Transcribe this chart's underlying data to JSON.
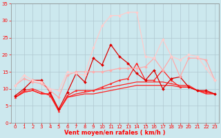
{
  "x": [
    0,
    1,
    2,
    3,
    4,
    5,
    6,
    7,
    8,
    9,
    10,
    11,
    12,
    13,
    14,
    15,
    16,
    17,
    18,
    19,
    20,
    21,
    22,
    23
  ],
  "series": [
    {
      "values": [
        7.5,
        9.0,
        9.5,
        8.5,
        8.5,
        3.5,
        7.5,
        8.0,
        8.5,
        8.5,
        9.0,
        9.5,
        10.0,
        10.5,
        11.0,
        11.0,
        11.0,
        11.0,
        11.0,
        10.5,
        10.5,
        9.5,
        8.5,
        8.5
      ],
      "color": "#ff2222",
      "lw": 0.9,
      "marker": null,
      "ms": 0
    },
    {
      "values": [
        7.5,
        9.0,
        9.5,
        8.5,
        8.5,
        3.5,
        7.5,
        8.5,
        9.0,
        9.5,
        10.0,
        10.5,
        11.0,
        11.5,
        12.0,
        12.0,
        12.0,
        12.0,
        11.5,
        11.0,
        11.0,
        9.5,
        9.0,
        8.5
      ],
      "color": "#ff2222",
      "lw": 0.9,
      "marker": null,
      "ms": 0
    },
    {
      "values": [
        7.5,
        9.5,
        10.0,
        9.0,
        8.0,
        3.5,
        8.0,
        9.5,
        9.5,
        9.5,
        10.5,
        11.5,
        12.5,
        13.0,
        17.5,
        12.5,
        12.5,
        15.5,
        12.5,
        10.5,
        10.5,
        9.5,
        9.0,
        8.5
      ],
      "color": "#ff2222",
      "lw": 0.9,
      "marker": "^",
      "ms": 2.0
    },
    {
      "values": [
        8.0,
        10.0,
        12.5,
        12.5,
        9.0,
        4.0,
        9.0,
        14.5,
        12.0,
        19.0,
        17.0,
        23.0,
        19.5,
        17.5,
        14.5,
        12.5,
        15.5,
        10.0,
        13.0,
        13.5,
        10.5,
        9.5,
        9.5,
        8.5
      ],
      "color": "#dd0000",
      "lw": 0.9,
      "marker": "D",
      "ms": 2.0
    },
    {
      "values": [
        11.0,
        13.0,
        12.0,
        11.5,
        9.5,
        7.5,
        14.0,
        15.0,
        15.0,
        15.0,
        15.0,
        15.5,
        16.0,
        16.0,
        16.0,
        16.5,
        19.0,
        15.5,
        19.5,
        13.5,
        19.0,
        19.0,
        18.5,
        12.5
      ],
      "color": "#ffaaaa",
      "lw": 0.9,
      "marker": "D",
      "ms": 2.0
    },
    {
      "values": [
        11.0,
        14.0,
        12.5,
        12.0,
        10.0,
        9.5,
        15.0,
        14.5,
        14.0,
        22.0,
        28.5,
        31.5,
        31.5,
        32.5,
        32.5,
        19.5,
        19.0,
        24.5,
        19.5,
        18.5,
        20.0,
        19.5,
        16.0,
        12.5
      ],
      "color": "#ffcccc",
      "lw": 0.9,
      "marker": "D",
      "ms": 2.0
    }
  ],
  "xlim": [
    -0.5,
    23.5
  ],
  "ylim": [
    0,
    35
  ],
  "yticks": [
    0,
    5,
    10,
    15,
    20,
    25,
    30,
    35
  ],
  "xticks": [
    0,
    1,
    2,
    3,
    4,
    5,
    6,
    7,
    8,
    9,
    10,
    11,
    12,
    13,
    14,
    15,
    16,
    17,
    18,
    19,
    20,
    21,
    22,
    23
  ],
  "xlabel": "Vent moyen/en rafales ( km/h )",
  "bgcolor": "#cce8ee",
  "grid_color": "#b0c8d0",
  "label_color": "#ff0000",
  "tick_color": "#ff0000",
  "tick_fontsize": 5.0,
  "xlabel_fontsize": 6.0
}
